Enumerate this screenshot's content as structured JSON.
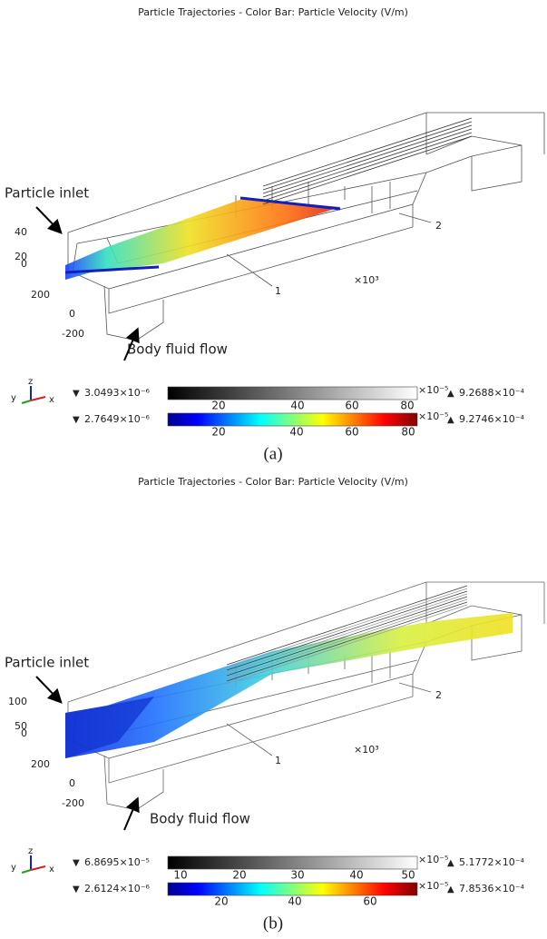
{
  "panels": [
    {
      "title": "Particle Trajectories - Color Bar: Particle Velocity (V/m)",
      "inlet_label": "Particle inlet",
      "flow_label": "Body fluid flow",
      "axis_labels": [
        "40",
        "20",
        "0",
        "200",
        "0",
        "-200",
        "1",
        "2",
        "×10³"
      ],
      "triad": [
        "z",
        "y",
        "x"
      ],
      "colorbars": [
        {
          "min": "3.0493×10⁻⁶",
          "max": "9.2688×10⁻⁴",
          "exponent": "×10⁻⁵",
          "ticks": [
            "20",
            "40",
            "60",
            "80"
          ]
        },
        {
          "min": "2.7649×10⁻⁶",
          "max": "9.2746×10⁻⁴",
          "exponent": "×10⁻⁵",
          "ticks": [
            "20",
            "40",
            "60",
            "80"
          ]
        }
      ],
      "caption": "(a)"
    },
    {
      "title": "Particle Trajectories - Color Bar: Particle Velocity (V/m)",
      "inlet_label": "Particle inlet",
      "flow_label": "Body fluid flow",
      "axis_labels": [
        "100",
        "50",
        "0",
        "200",
        "0",
        "-200",
        "1",
        "2",
        "×10³"
      ],
      "triad": [
        "z",
        "y",
        "x"
      ],
      "colorbars": [
        {
          "min": "6.8695×10⁻⁵",
          "max": "5.1772×10⁻⁴",
          "exponent": "×10⁻⁵",
          "ticks": [
            "10",
            "20",
            "30",
            "40",
            "50"
          ]
        },
        {
          "min": "2.6124×10⁻⁶",
          "max": "7.8536×10⁻⁴",
          "exponent": "×10⁻⁵",
          "ticks": [
            "20",
            "40",
            "60"
          ]
        }
      ],
      "caption": "(b)"
    }
  ]
}
